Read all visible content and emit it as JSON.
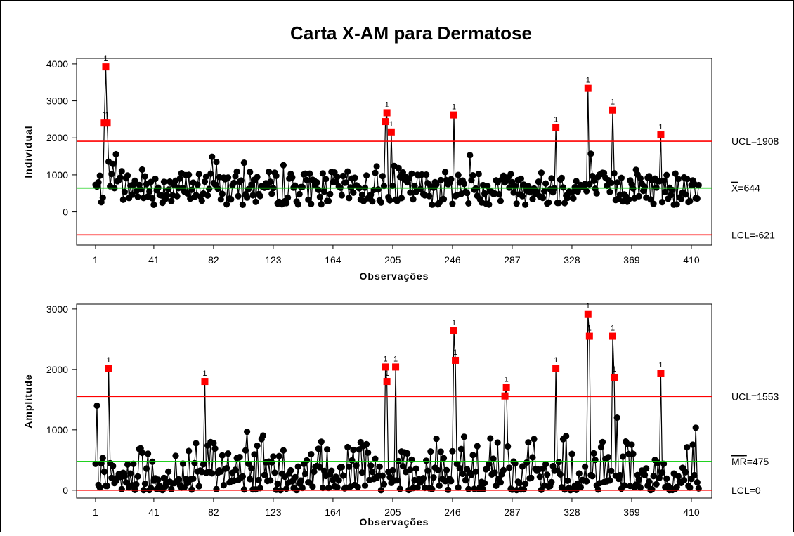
{
  "title": "Carta X-AM para Dermatose",
  "colors": {
    "limit": "#ff0000",
    "center": "#00cc00",
    "point": "#000000",
    "out": "#ff0000"
  },
  "chart_data": [
    {
      "type": "line",
      "name": "individual",
      "xlabel": "Observações",
      "ylabel": "Individual",
      "xticks": [
        1,
        41,
        82,
        123,
        164,
        205,
        246,
        287,
        328,
        369,
        410
      ],
      "yticks": [
        0,
        1000,
        2000,
        3000,
        4000
      ],
      "xlim": [
        -12,
        424
      ],
      "ylim": [
        -900,
        4150
      ],
      "limits": {
        "ucl": 1908,
        "center": 644,
        "lcl": -621
      },
      "limit_labels": {
        "ucl": "UCL=1908",
        "center": "X=644",
        "center_bar": "X",
        "center_rest": "=644",
        "lcl": "LCL=-621"
      },
      "out_of_control": [
        {
          "x": 7,
          "y": 2400,
          "label": "1"
        },
        {
          "x": 8,
          "y": 3920,
          "label": "1"
        },
        {
          "x": 9,
          "y": 2400,
          "label": "1"
        },
        {
          "x": 200,
          "y": 2440,
          "label": "1"
        },
        {
          "x": 201,
          "y": 2680,
          "label": "1"
        },
        {
          "x": 204,
          "y": 2160,
          "label": "1"
        },
        {
          "x": 247,
          "y": 2620,
          "label": "1"
        },
        {
          "x": 317,
          "y": 2280,
          "label": "1"
        },
        {
          "x": 339,
          "y": 3340,
          "label": "1"
        },
        {
          "x": 356,
          "y": 2750,
          "label": "1"
        },
        {
          "x": 389,
          "y": 2080,
          "label": "1"
        }
      ]
    },
    {
      "type": "line",
      "name": "amplitude",
      "xlabel": "Observações",
      "ylabel": "Amplitude",
      "xticks": [
        1,
        41,
        82,
        123,
        164,
        205,
        246,
        287,
        328,
        369,
        410
      ],
      "yticks": [
        0,
        1000,
        2000,
        3000
      ],
      "xlim": [
        -12,
        424
      ],
      "ylim": [
        -130,
        3080
      ],
      "limits": {
        "ucl": 1553,
        "center": 475,
        "lcl": 0
      },
      "limit_labels": {
        "ucl": "UCL=1553",
        "center": "MR=475",
        "center_bar": "MR",
        "center_rest": "=475",
        "lcl": "LCL=0"
      },
      "out_of_control": [
        {
          "x": 10,
          "y": 2020,
          "label": "1"
        },
        {
          "x": 76,
          "y": 1800,
          "label": "1"
        },
        {
          "x": 200,
          "y": 2040,
          "label": "1"
        },
        {
          "x": 201,
          "y": 1800,
          "label": "1"
        },
        {
          "x": 207,
          "y": 2040,
          "label": "1"
        },
        {
          "x": 247,
          "y": 2640,
          "label": "1"
        },
        {
          "x": 248,
          "y": 2150,
          "label": "1"
        },
        {
          "x": 282,
          "y": 1560,
          "label": "1"
        },
        {
          "x": 283,
          "y": 1700,
          "label": "1"
        },
        {
          "x": 317,
          "y": 2020,
          "label": "1"
        },
        {
          "x": 339,
          "y": 2920,
          "label": "1"
        },
        {
          "x": 340,
          "y": 2550,
          "label": "1"
        },
        {
          "x": 356,
          "y": 2550,
          "label": "1"
        },
        {
          "x": 357,
          "y": 1870,
          "label": "1"
        },
        {
          "x": 389,
          "y": 1940,
          "label": "1"
        }
      ]
    }
  ]
}
